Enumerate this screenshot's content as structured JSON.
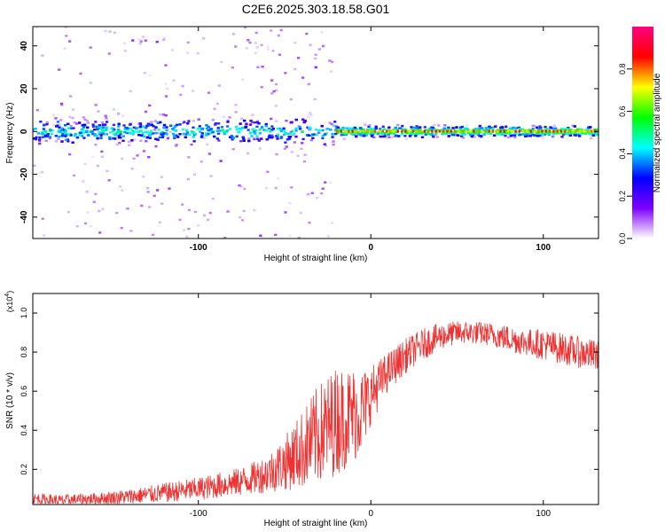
{
  "title": "C2E6.2025.303.18.58.G01",
  "chart_data": [
    {
      "type": "heatmap",
      "xlabel": "Height of straight line (km)",
      "ylabel": "Frequency (Hz)",
      "xlim": [
        -196,
        132
      ],
      "ylim": [
        -50,
        49
      ],
      "xticks": [
        -100,
        0,
        100
      ],
      "xtick_labels": [
        "-100",
        "0",
        "100"
      ],
      "yticks": [
        -40,
        -20,
        0,
        20,
        40
      ],
      "ytick_labels": [
        "-40",
        "-20",
        "0",
        "20",
        "40"
      ],
      "colorbar": {
        "label": "Normalized spectral amplitude",
        "range": [
          0,
          1
        ],
        "ticks": [
          0,
          0.2,
          0.4,
          0.6,
          0.8
        ],
        "tick_labels": [
          "0.0",
          "0.2",
          "0.4",
          "0.6",
          "0.8"
        ],
        "colors": [
          "#ffffff",
          "#7f00ff",
          "#0000ff",
          "#00ffff",
          "#00ff00",
          "#ffff00",
          "#ff0000",
          "#ff0080"
        ]
      },
      "signal_track": {
        "center_frequency_hz": 0,
        "noisy_region_km": [
          -196,
          -20
        ],
        "noisy_halfwidth_hz": 6,
        "clean_region_km": [
          -20,
          132
        ],
        "clean_halfwidth_hz": 3,
        "peak_amplitude": 0.9
      }
    },
    {
      "type": "line",
      "xlabel": "Height of straight line (km)",
      "ylabel": "SNR (10 * v/v)",
      "y_multiplier": "(x10",
      "y_multiplier_exponent": "4",
      "y_multiplier_close": ")",
      "xlim": [
        -196,
        132
      ],
      "ylim": [
        0.02,
        1.1
      ],
      "xticks": [
        -100,
        0,
        100
      ],
      "xtick_labels": [
        "-100",
        "0",
        "100"
      ],
      "yticks": [
        0.2,
        0.4,
        0.6,
        0.8,
        1.0
      ],
      "ytick_labels": [
        "0.2",
        "0.4",
        "0.6",
        "0.8",
        "1.0"
      ],
      "series": [
        {
          "name": "SNR",
          "color": "#ee3333",
          "x": [
            -196,
            -180,
            -160,
            -140,
            -120,
            -100,
            -80,
            -70,
            -60,
            -50,
            -40,
            -30,
            -20,
            -10,
            -5,
            0,
            10,
            20,
            30,
            40,
            50,
            60,
            70,
            80,
            90,
            100,
            110,
            120,
            132
          ],
          "y": [
            0.05,
            0.04,
            0.05,
            0.06,
            0.08,
            0.1,
            0.13,
            0.15,
            0.18,
            0.23,
            0.3,
            0.38,
            0.45,
            0.48,
            0.5,
            0.58,
            0.7,
            0.78,
            0.84,
            0.88,
            0.9,
            0.9,
            0.89,
            0.87,
            0.85,
            0.84,
            0.82,
            0.8,
            0.78
          ],
          "noise_amplitude": [
            0.03,
            0.03,
            0.03,
            0.04,
            0.05,
            0.06,
            0.07,
            0.08,
            0.1,
            0.14,
            0.2,
            0.26,
            0.28,
            0.25,
            0.22,
            0.15,
            0.1,
            0.09,
            0.08,
            0.07,
            0.06,
            0.06,
            0.06,
            0.07,
            0.07,
            0.08,
            0.08,
            0.08,
            0.08
          ]
        }
      ]
    }
  ]
}
